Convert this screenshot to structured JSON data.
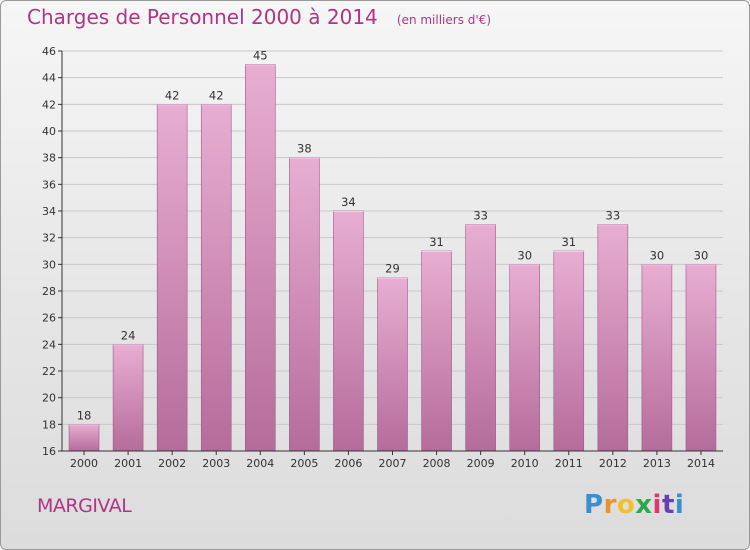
{
  "header": {
    "title": "Charges de Personnel 2000 à 2014",
    "subtitle": "(en milliers d'€)"
  },
  "footer": {
    "commune": "MARGIVAL",
    "logo_text": "Proxiti",
    "logo_letters": [
      "P",
      "r",
      "o",
      "x",
      "i",
      "t",
      "i"
    ]
  },
  "colors": {
    "title": "#b03585",
    "bar_light": "#e8aed2",
    "bar_dark": "#b56c9a",
    "grid": "#c8c8c8",
    "axis": "#333333"
  },
  "chart_data": {
    "type": "bar",
    "title": "Charges de Personnel 2000 à 2014",
    "subtitle": "(en milliers d'€)",
    "xlabel": "",
    "ylabel": "",
    "categories": [
      "2000",
      "2001",
      "2002",
      "2003",
      "2004",
      "2005",
      "2006",
      "2007",
      "2008",
      "2009",
      "2010",
      "2011",
      "2012",
      "2013",
      "2014"
    ],
    "values": [
      18,
      24,
      42,
      42,
      45,
      38,
      34,
      29,
      31,
      33,
      30,
      31,
      33,
      30,
      30
    ],
    "ylim": [
      16,
      46
    ],
    "yticks": [
      "16",
      "18",
      "20",
      "22",
      "24",
      "26",
      "28",
      "30",
      "32",
      "34",
      "36",
      "38",
      "40",
      "42",
      "44",
      "46"
    ],
    "grid": true,
    "legend": "none"
  }
}
